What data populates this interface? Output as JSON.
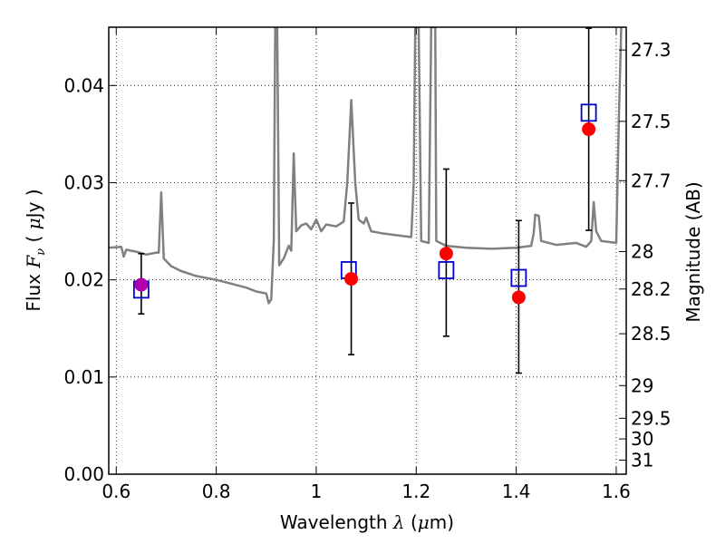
{
  "chart_data": {
    "type": "scatter",
    "xlabel": "Wavelength  λ (μm)",
    "ylabel_left": "Flux  Fν  ( μJy )",
    "ylabel_right": "Magnitude (AB)",
    "xlim": [
      0.585,
      1.62
    ],
    "ylim": [
      0.0,
      0.046
    ],
    "grid": true,
    "x_ticks": [
      0.6,
      0.8,
      1.0,
      1.2,
      1.4,
      1.6
    ],
    "x_tick_labels": [
      "0.6",
      "0.8",
      "1",
      "1.2",
      "1.4",
      "1.6"
    ],
    "y_ticks": [
      0.0,
      0.01,
      0.02,
      0.03,
      0.04
    ],
    "y_tick_labels": [
      "0.00",
      "0.01",
      "0.02",
      "0.03",
      "0.04"
    ],
    "right_ticks": [
      27.3,
      27.5,
      27.7,
      28,
      28.2,
      28.5,
      29,
      29.5,
      30,
      31
    ],
    "right_tick_labels": [
      "27.3",
      "27.5",
      "27.7",
      "28",
      "28.2",
      "28.5",
      "29",
      "29.5",
      "30",
      "31"
    ],
    "colors": {
      "observed": "#ff0000",
      "observed_first": "#b000b0",
      "model": "#0000cc",
      "template": "#808080",
      "errorbar": "#000000"
    },
    "observed_points": [
      {
        "x": 0.65,
        "y": 0.0195,
        "err_low": 0.003,
        "err_high": 0.0032
      },
      {
        "x": 1.07,
        "y": 0.0201,
        "err_low": 0.0078,
        "err_high": 0.0078
      },
      {
        "x": 1.26,
        "y": 0.0227,
        "err_low": 0.0085,
        "err_high": 0.0087
      },
      {
        "x": 1.405,
        "y": 0.0182,
        "err_low": 0.0078,
        "err_high": 0.0079
      },
      {
        "x": 1.545,
        "y": 0.0355,
        "err_low": 0.0104,
        "err_high": 0.0104
      }
    ],
    "model_points": [
      {
        "x": 0.65,
        "y": 0.019
      },
      {
        "x": 1.065,
        "y": 0.021
      },
      {
        "x": 1.26,
        "y": 0.021
      },
      {
        "x": 1.405,
        "y": 0.0202
      },
      {
        "x": 1.545,
        "y": 0.0372
      }
    ],
    "template_spectrum": [
      [
        0.585,
        0.0233
      ],
      [
        0.61,
        0.0234
      ],
      [
        0.615,
        0.0224
      ],
      [
        0.62,
        0.0231
      ],
      [
        0.64,
        0.0229
      ],
      [
        0.66,
        0.0226
      ],
      [
        0.68,
        0.0228
      ],
      [
        0.685,
        0.0228
      ],
      [
        0.69,
        0.029
      ],
      [
        0.695,
        0.0222
      ],
      [
        0.71,
        0.0214
      ],
      [
        0.73,
        0.0209
      ],
      [
        0.76,
        0.0204
      ],
      [
        0.8,
        0.02
      ],
      [
        0.83,
        0.0196
      ],
      [
        0.86,
        0.0192
      ],
      [
        0.88,
        0.0188
      ],
      [
        0.9,
        0.0186
      ],
      [
        0.905,
        0.0176
      ],
      [
        0.91,
        0.018
      ],
      [
        0.915,
        0.024
      ],
      [
        0.918,
        0.046
      ],
      [
        0.922,
        0.046
      ],
      [
        0.926,
        0.0215
      ],
      [
        0.935,
        0.0222
      ],
      [
        0.945,
        0.0235
      ],
      [
        0.95,
        0.023
      ],
      [
        0.955,
        0.033
      ],
      [
        0.96,
        0.025
      ],
      [
        0.97,
        0.0256
      ],
      [
        0.98,
        0.0258
      ],
      [
        0.99,
        0.0252
      ],
      [
        1.0,
        0.0262
      ],
      [
        1.01,
        0.025
      ],
      [
        1.02,
        0.0257
      ],
      [
        1.04,
        0.0255
      ],
      [
        1.055,
        0.026
      ],
      [
        1.062,
        0.03
      ],
      [
        1.07,
        0.0385
      ],
      [
        1.078,
        0.03
      ],
      [
        1.085,
        0.0262
      ],
      [
        1.095,
        0.0258
      ],
      [
        1.1,
        0.0264
      ],
      [
        1.11,
        0.025
      ],
      [
        1.13,
        0.0248
      ],
      [
        1.16,
        0.0246
      ],
      [
        1.19,
        0.0244
      ],
      [
        1.195,
        0.03
      ],
      [
        1.198,
        0.046
      ],
      [
        1.205,
        0.046
      ],
      [
        1.21,
        0.024
      ],
      [
        1.225,
        0.0238
      ],
      [
        1.23,
        0.046
      ],
      [
        1.238,
        0.046
      ],
      [
        1.24,
        0.024
      ],
      [
        1.26,
        0.0235
      ],
      [
        1.3,
        0.0233
      ],
      [
        1.35,
        0.0232
      ],
      [
        1.4,
        0.0233
      ],
      [
        1.43,
        0.0235
      ],
      [
        1.435,
        0.0248
      ],
      [
        1.438,
        0.0267
      ],
      [
        1.445,
        0.0266
      ],
      [
        1.45,
        0.024
      ],
      [
        1.48,
        0.0236
      ],
      [
        1.52,
        0.0238
      ],
      [
        1.54,
        0.0234
      ],
      [
        1.55,
        0.024
      ],
      [
        1.555,
        0.028
      ],
      [
        1.56,
        0.025
      ],
      [
        1.57,
        0.024
      ],
      [
        1.6,
        0.0238
      ],
      [
        1.605,
        0.036
      ],
      [
        1.61,
        0.046
      ]
    ]
  }
}
